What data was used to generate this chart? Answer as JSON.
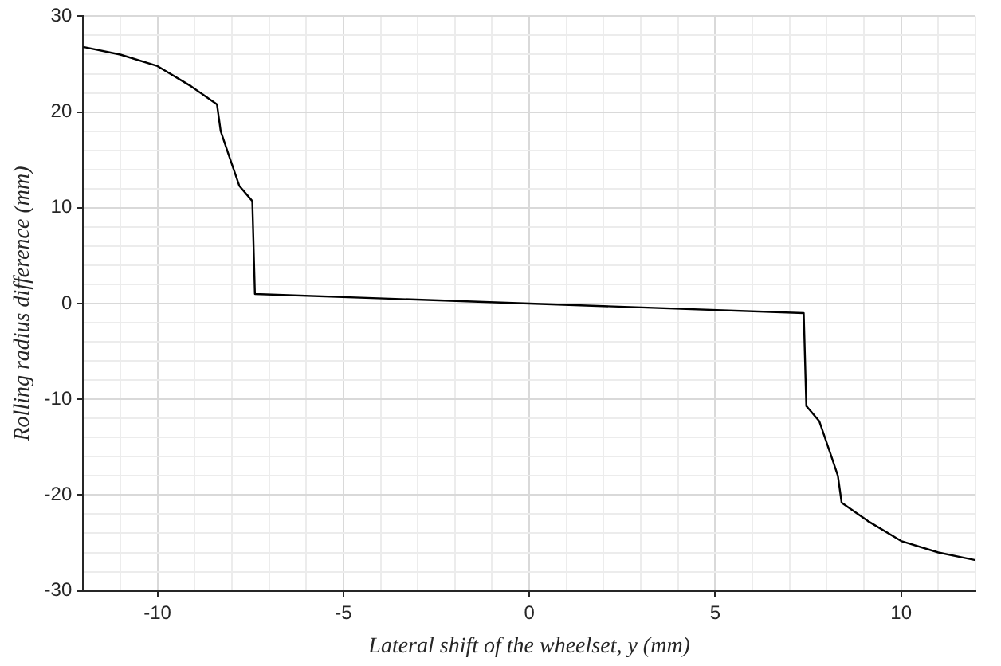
{
  "chart_data": {
    "type": "line",
    "xlabel": "Lateral shift of the wheelset, y (mm)",
    "ylabel": "Rolling radius difference (mm)",
    "series": [
      {
        "color": "#000000",
        "x": [
          -12,
          -11,
          -10,
          -9.1,
          -8.4,
          -8.3,
          -8.1,
          -7.8,
          -7.45,
          -7.38,
          0,
          7.38,
          7.45,
          7.8,
          8.1,
          8.3,
          8.4,
          9.1,
          10,
          11,
          12
        ],
        "values": [
          26.8,
          26,
          24.8,
          22.7,
          20.8,
          18,
          15.7,
          12.3,
          10.7,
          1,
          0,
          -1,
          -10.7,
          -12.3,
          -15.7,
          -18,
          -20.8,
          -22.7,
          -24.8,
          -26,
          -26.8
        ]
      }
    ],
    "xlim": [
      -12,
      12
    ],
    "ylim": [
      -30,
      30
    ],
    "xticks": [
      {
        "value": -12,
        "label": null
      },
      {
        "value": -11,
        "label": null
      },
      -10,
      {
        "value": -9,
        "label": null
      },
      {
        "value": -8,
        "label": null
      },
      {
        "value": -7,
        "label": null
      },
      {
        "value": -6,
        "label": null
      },
      -5,
      {
        "value": -4,
        "label": null
      },
      {
        "value": -3,
        "label": null
      },
      {
        "value": -2,
        "label": null
      },
      {
        "value": -1,
        "label": null
      },
      0,
      {
        "value": 1,
        "label": null
      },
      {
        "value": 2,
        "label": null
      },
      {
        "value": 3,
        "label": null
      },
      {
        "value": 4,
        "label": null
      },
      5,
      {
        "value": 6,
        "label": null
      },
      {
        "value": 7,
        "label": null
      },
      {
        "value": 8,
        "label": null
      },
      {
        "value": 9,
        "label": null
      },
      10,
      {
        "value": 11,
        "label": null
      },
      {
        "value": 12,
        "label": null
      }
    ],
    "yticks": [
      -30,
      {
        "value": -28,
        "label": null
      },
      {
        "value": -26,
        "label": null
      },
      {
        "value": -24,
        "label": null
      },
      {
        "value": -22,
        "label": null
      },
      -20,
      {
        "value": -18,
        "label": null
      },
      {
        "value": -16,
        "label": null
      },
      {
        "value": -14,
        "label": null
      },
      {
        "value": -12,
        "label": null
      },
      -10,
      {
        "value": -8,
        "label": null
      },
      {
        "value": -6,
        "label": null
      },
      {
        "value": -4,
        "label": null
      },
      {
        "value": -2,
        "label": null
      },
      0,
      {
        "value": 2,
        "label": null
      },
      {
        "value": 4,
        "label": null
      },
      {
        "value": 6,
        "label": null
      },
      {
        "value": 8,
        "label": null
      },
      10,
      {
        "value": 12,
        "label": null
      },
      {
        "value": 14,
        "label": null
      },
      {
        "value": 16,
        "label": null
      },
      {
        "value": 18,
        "label": null
      },
      20,
      {
        "value": 22,
        "label": null
      },
      {
        "value": 24,
        "label": null
      },
      {
        "value": 26,
        "label": null
      },
      {
        "value": 28,
        "label": null
      },
      30
    ],
    "grid": true,
    "legend": false,
    "marker": "none",
    "line_style": "solid"
  }
}
